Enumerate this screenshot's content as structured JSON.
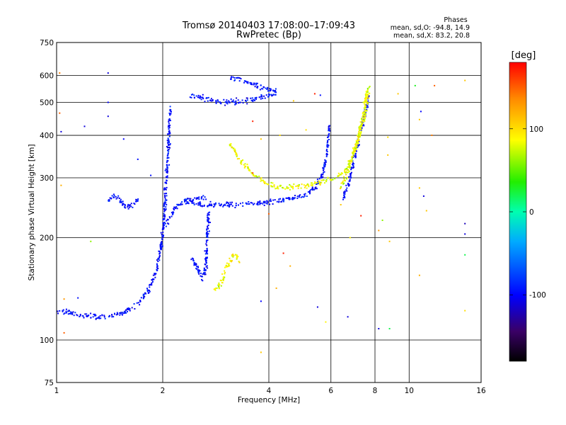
{
  "header": {
    "title_line1": "Tromsø 20140403 17:08:00–17:09:43",
    "title_line2": "RwPretec (Bp)",
    "stats_title": "Phases",
    "stats_o": "mean, sd,O: -94.8, 14.9",
    "stats_x": "mean, sd,X: 83.2, 20.8"
  },
  "colorbar": {
    "label": "[deg]",
    "min": -180,
    "max": 180,
    "ticks": [
      {
        "value": 100,
        "label": "100"
      },
      {
        "value": 0,
        "label": "0"
      },
      {
        "value": -100,
        "label": "-100"
      }
    ]
  },
  "chart_data": {
    "type": "scatter",
    "title": "Tromsø 20140403 17:08:00–17:09:43",
    "subtitle": "RwPretec (Bp)",
    "xlabel": "Frequency [MHz]",
    "ylabel": "Stationary phase Virtual Height [km]",
    "x_scale": "log",
    "y_scale": "log",
    "xlim": [
      1,
      16
    ],
    "ylim": [
      75,
      750
    ],
    "x_ticks": [
      1,
      2,
      4,
      6,
      8,
      10,
      16
    ],
    "y_ticks": [
      75,
      100,
      200,
      300,
      400,
      500,
      600,
      750
    ],
    "grid": true,
    "color_scale": "phase [deg], -180 to 180",
    "series": [
      {
        "name": "",
        "phase_mean": -94.8,
        "phase_sd": 14.9,
        "traces": [
          {
            "x": [
              1.0,
              1.08,
              1.15,
              1.25,
              1.4,
              1.55,
              1.7,
              1.82,
              1.92,
              1.98,
              2.02,
              2.05,
              2.08,
              2.1
            ],
            "y": [
              122,
              121,
              118,
              117,
              117,
              120,
              128,
              140,
              160,
              190,
              230,
              300,
              380,
              480
            ]
          },
          {
            "x": [
              2.3,
              2.4,
              2.5,
              2.7,
              3.0,
              3.4,
              3.9,
              4.4,
              5.0,
              5.4,
              5.7,
              5.85,
              5.95
            ],
            "y": [
              260,
              255,
              252,
              250,
              250,
              251,
              254,
              258,
              265,
              280,
              310,
              360,
              430
            ]
          },
          {
            "x": [
              2.05,
              2.1,
              2.15,
              2.2,
              2.28,
              2.36,
              2.45,
              2.55,
              2.65
            ],
            "y": [
              220,
              230,
              240,
              250,
              255,
              258,
              258,
              262,
              262
            ]
          },
          {
            "x": [
              2.4,
              2.5,
              2.6,
              2.65,
              2.7
            ],
            "y": [
              175,
              165,
              150,
              165,
              240
            ]
          },
          {
            "x": [
              1.4,
              1.45,
              1.5,
              1.55,
              1.6,
              1.65,
              1.7
            ],
            "y": [
              255,
              265,
              262,
              250,
              245,
              250,
              260
            ]
          },
          {
            "x": [
              2.4,
              2.6,
              2.8,
              3.0,
              3.2,
              3.4,
              3.6,
              3.9,
              4.2
            ],
            "y": [
              525,
              515,
              505,
              500,
              502,
              505,
              510,
              520,
              535
            ]
          },
          {
            "x": [
              3.1,
              3.3,
              3.5,
              3.7,
              3.9,
              4.2
            ],
            "y": [
              590,
              585,
              570,
              560,
              548,
              545
            ]
          },
          {
            "x": [
              6.5,
              6.8,
              7.1,
              7.4,
              7.7
            ],
            "y": [
              260,
              300,
              360,
              440,
              520
            ]
          }
        ]
      },
      {
        "name": "",
        "phase_mean": 83.2,
        "phase_sd": 20.8,
        "traces": [
          {
            "x": [
              3.1,
              3.3,
              3.6,
              3.9,
              4.4,
              5.0,
              5.5,
              6.2,
              6.7,
              7.1,
              7.5,
              7.7
            ],
            "y": [
              380,
              340,
              310,
              290,
              280,
              285,
              290,
              300,
              320,
              380,
              460,
              560
            ]
          },
          {
            "x": [
              2.8,
              2.95,
              3.0,
              3.1,
              3.2,
              3.3
            ],
            "y": [
              140,
              148,
              160,
              170,
              180,
              170
            ]
          },
          {
            "x": [
              6.4,
              6.6,
              6.8,
              7.0,
              7.2,
              7.4,
              7.6
            ],
            "y": [
              280,
              300,
              330,
              360,
              390,
              460,
              540
            ]
          }
        ]
      }
    ],
    "isolated_points": [
      {
        "x": 1.02,
        "y": 610,
        "phase": 140
      },
      {
        "x": 1.02,
        "y": 465,
        "phase": 150
      },
      {
        "x": 1.4,
        "y": 610,
        "phase": -110
      },
      {
        "x": 1.4,
        "y": 500,
        "phase": -100
      },
      {
        "x": 1.4,
        "y": 455,
        "phase": -110
      },
      {
        "x": 1.03,
        "y": 410,
        "phase": -110
      },
      {
        "x": 1.2,
        "y": 425,
        "phase": -110
      },
      {
        "x": 1.55,
        "y": 390,
        "phase": -100
      },
      {
        "x": 1.7,
        "y": 340,
        "phase": -95
      },
      {
        "x": 1.85,
        "y": 305,
        "phase": -95
      },
      {
        "x": 1.03,
        "y": 285,
        "phase": 120
      },
      {
        "x": 1.25,
        "y": 195,
        "phase": 60
      },
      {
        "x": 1.05,
        "y": 132,
        "phase": 130
      },
      {
        "x": 1.15,
        "y": 133,
        "phase": -95
      },
      {
        "x": 1.05,
        "y": 105,
        "phase": 150
      },
      {
        "x": 3.6,
        "y": 310,
        "phase": 160
      },
      {
        "x": 3.8,
        "y": 390,
        "phase": 110
      },
      {
        "x": 4.3,
        "y": 400,
        "phase": 100
      },
      {
        "x": 4.7,
        "y": 505,
        "phase": 110
      },
      {
        "x": 5.1,
        "y": 415,
        "phase": 100
      },
      {
        "x": 3.6,
        "y": 440,
        "phase": 170
      },
      {
        "x": 4.0,
        "y": 235,
        "phase": 150
      },
      {
        "x": 4.4,
        "y": 180,
        "phase": 170
      },
      {
        "x": 4.6,
        "y": 165,
        "phase": 120
      },
      {
        "x": 3.8,
        "y": 130,
        "phase": -100
      },
      {
        "x": 3.8,
        "y": 92,
        "phase": 110
      },
      {
        "x": 4.2,
        "y": 142,
        "phase": 120
      },
      {
        "x": 5.5,
        "y": 125,
        "phase": -110
      },
      {
        "x": 5.8,
        "y": 113,
        "phase": 90
      },
      {
        "x": 6.7,
        "y": 117,
        "phase": -110
      },
      {
        "x": 5.4,
        "y": 530,
        "phase": 170
      },
      {
        "x": 5.6,
        "y": 525,
        "phase": -95
      },
      {
        "x": 6.4,
        "y": 250,
        "phase": 110
      },
      {
        "x": 6.8,
        "y": 200,
        "phase": 90
      },
      {
        "x": 7.3,
        "y": 232,
        "phase": 170
      },
      {
        "x": 8.2,
        "y": 210,
        "phase": 130
      },
      {
        "x": 8.4,
        "y": 225,
        "phase": 60
      },
      {
        "x": 8.8,
        "y": 195,
        "phase": 110
      },
      {
        "x": 8.7,
        "y": 350,
        "phase": 110
      },
      {
        "x": 8.7,
        "y": 395,
        "phase": 100
      },
      {
        "x": 8.2,
        "y": 108,
        "phase": -110
      },
      {
        "x": 8.8,
        "y": 108,
        "phase": 20
      },
      {
        "x": 9.3,
        "y": 530,
        "phase": 110
      },
      {
        "x": 10.4,
        "y": 560,
        "phase": 30
      },
      {
        "x": 10.8,
        "y": 470,
        "phase": -100
      },
      {
        "x": 10.7,
        "y": 280,
        "phase": 110
      },
      {
        "x": 11.0,
        "y": 265,
        "phase": -110
      },
      {
        "x": 11.2,
        "y": 240,
        "phase": 110
      },
      {
        "x": 10.7,
        "y": 155,
        "phase": 120
      },
      {
        "x": 10.7,
        "y": 445,
        "phase": 110
      },
      {
        "x": 14.4,
        "y": 220,
        "phase": -120
      },
      {
        "x": 14.4,
        "y": 205,
        "phase": -110
      },
      {
        "x": 14.4,
        "y": 178,
        "phase": 20
      },
      {
        "x": 14.4,
        "y": 122,
        "phase": 100
      },
      {
        "x": 14.4,
        "y": 580,
        "phase": 110
      },
      {
        "x": 11.6,
        "y": 400,
        "phase": 140
      },
      {
        "x": 11.8,
        "y": 560,
        "phase": 150
      }
    ]
  }
}
